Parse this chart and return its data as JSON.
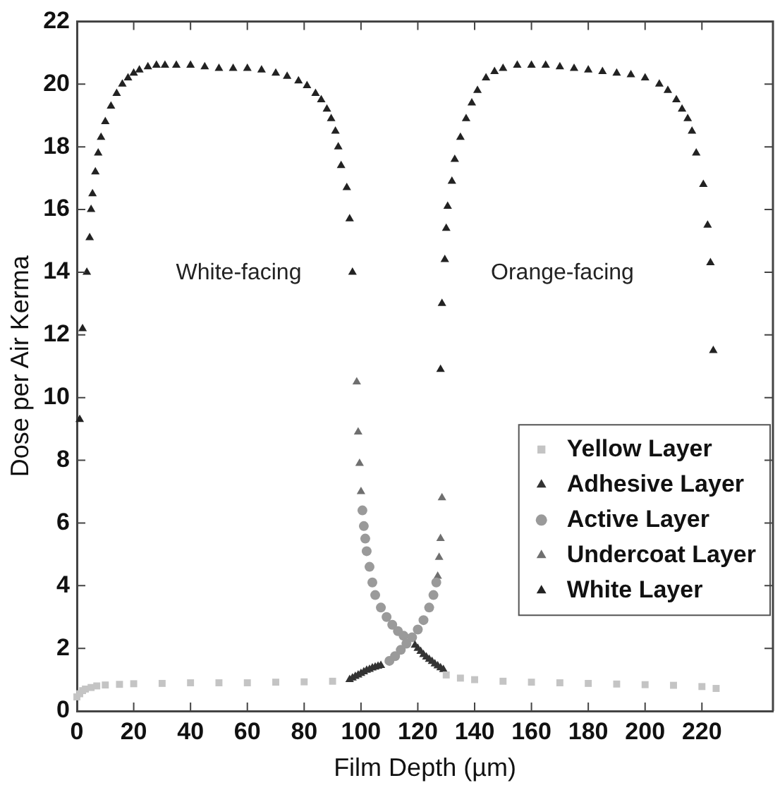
{
  "chart_data": {
    "type": "scatter",
    "xlabel": "Film Depth (µm)",
    "ylabel": "Dose per Air Kerma",
    "xlim": [
      0,
      245
    ],
    "xticks": [
      0,
      20,
      40,
      60,
      80,
      100,
      120,
      140,
      160,
      180,
      200,
      220
    ],
    "ylim": [
      0,
      22
    ],
    "yticks": [
      0,
      2,
      4,
      6,
      8,
      10,
      12,
      14,
      16,
      18,
      20,
      22
    ],
    "grid": false,
    "legend": "bottom right",
    "annotations": [
      "White-facing",
      "Orange-facing"
    ],
    "series": [
      {
        "name": "Yellow Layer",
        "color": "#c4c4c4",
        "marker": "square",
        "x": [
          0,
          1,
          2,
          3,
          5,
          7,
          10,
          15,
          20,
          30,
          40,
          50,
          60,
          70,
          80,
          90,
          130,
          135,
          140,
          150,
          160,
          170,
          180,
          190,
          200,
          210,
          220,
          225
        ],
        "values": [
          0.45,
          0.55,
          0.65,
          0.7,
          0.75,
          0.8,
          0.83,
          0.85,
          0.87,
          0.88,
          0.9,
          0.9,
          0.9,
          0.92,
          0.93,
          0.95,
          1.15,
          1.05,
          1.0,
          0.95,
          0.92,
          0.9,
          0.88,
          0.86,
          0.84,
          0.82,
          0.78,
          0.72
        ]
      },
      {
        "name": "Adhesive Layer",
        "color": "#333333",
        "marker": "triangle",
        "x": [
          96,
          97,
          98,
          99,
          100,
          101,
          102,
          103,
          104,
          105,
          106,
          107,
          119,
          120,
          121,
          122,
          123,
          124,
          125,
          126,
          127,
          128,
          129
        ],
        "values": [
          1.0,
          1.05,
          1.1,
          1.15,
          1.2,
          1.25,
          1.3,
          1.33,
          1.37,
          1.4,
          1.43,
          1.45,
          2.1,
          2.0,
          1.9,
          1.8,
          1.72,
          1.65,
          1.58,
          1.5,
          1.44,
          1.38,
          1.32
        ]
      },
      {
        "name": "Active Layer",
        "color": "#9a9a9a",
        "marker": "circle",
        "x": [
          100.5,
          101,
          101.5,
          102,
          103,
          104,
          105,
          107,
          109,
          111,
          113,
          115,
          110,
          112,
          114,
          116,
          118,
          120,
          122,
          124,
          125.5,
          126.5
        ],
        "values": [
          6.4,
          5.9,
          5.5,
          5.1,
          4.6,
          4.1,
          3.7,
          3.3,
          3.0,
          2.75,
          2.55,
          2.4,
          1.6,
          1.75,
          1.95,
          2.15,
          2.35,
          2.6,
          2.9,
          3.3,
          3.7,
          4.1
        ]
      },
      {
        "name": "Undercoat Layer",
        "color": "#6f6f6f",
        "marker": "triangle",
        "x": [
          98.5,
          99,
          99.5,
          100,
          127,
          127.5,
          128,
          128.5
        ],
        "values": [
          10.5,
          8.9,
          7.9,
          7.0,
          4.3,
          4.9,
          5.5,
          6.8
        ]
      },
      {
        "name": "White Layer",
        "color": "#222222",
        "marker": "triangle",
        "x": [
          1,
          2,
          3.5,
          4.5,
          5,
          5.5,
          6.5,
          7.5,
          8.5,
          10,
          12,
          14,
          16,
          18,
          20,
          22,
          25,
          28,
          31,
          35,
          40,
          45,
          50,
          55,
          60,
          65,
          70,
          74,
          78,
          81,
          84,
          86,
          88,
          89.5,
          91,
          92,
          93,
          95,
          96,
          97,
          128,
          128.5,
          129.5,
          130,
          130.5,
          132,
          133,
          135,
          137,
          139,
          141,
          144,
          147,
          150,
          155,
          160,
          165,
          170,
          175,
          180,
          185,
          190,
          195,
          200,
          205,
          208,
          211,
          213,
          215,
          216.5,
          218,
          220.5,
          222,
          223,
          224
        ],
        "values": [
          9.3,
          12.2,
          14,
          15.1,
          16,
          16.5,
          17.2,
          17.8,
          18.3,
          18.8,
          19.3,
          19.7,
          20.0,
          20.2,
          20.35,
          20.45,
          20.55,
          20.6,
          20.6,
          20.6,
          20.6,
          20.55,
          20.5,
          20.5,
          20.5,
          20.45,
          20.35,
          20.25,
          20.1,
          19.95,
          19.7,
          19.5,
          19.2,
          18.9,
          18.5,
          18.0,
          17.4,
          16.7,
          15.7,
          14.0,
          10.9,
          13.0,
          14.4,
          15.4,
          16.1,
          16.9,
          17.6,
          18.3,
          18.9,
          19.4,
          19.8,
          20.2,
          20.4,
          20.5,
          20.6,
          20.6,
          20.6,
          20.55,
          20.5,
          20.45,
          20.4,
          20.35,
          20.3,
          20.2,
          20.0,
          19.8,
          19.5,
          19.2,
          18.9,
          18.5,
          17.8,
          16.8,
          15.5,
          14.3,
          11.5
        ]
      }
    ]
  }
}
